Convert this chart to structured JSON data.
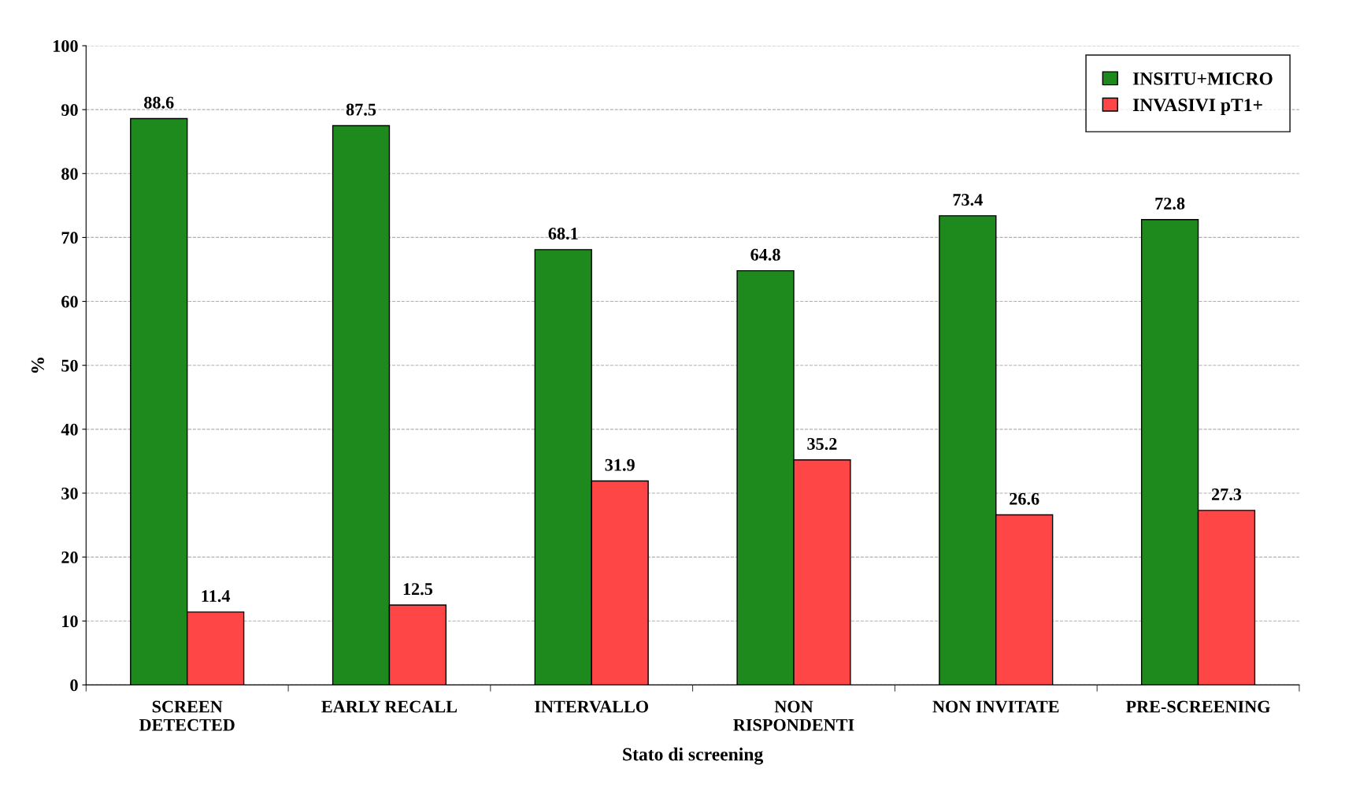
{
  "chart_data": {
    "type": "bar",
    "xlabel": "Stato di screening",
    "ylabel": "%",
    "categories": [
      "SCREEN\nDETECTED",
      "EARLY RECALL",
      "INTERVALLO",
      "NON\nRISPONDENTI",
      "NON INVITATE",
      "PRE-SCREENING"
    ],
    "series": [
      {
        "name": "INSITU+MICRO",
        "color": "#1e8a1e",
        "values": [
          88.6,
          87.5,
          68.1,
          64.8,
          73.4,
          72.8
        ]
      },
      {
        "name": "INVASIVI pT1+",
        "color": "#ff4646",
        "values": [
          11.4,
          12.5,
          31.9,
          35.2,
          26.6,
          27.3
        ]
      }
    ],
    "ylim": [
      0,
      100
    ],
    "yticks": [
      0,
      10,
      20,
      30,
      40,
      50,
      60,
      70,
      80,
      90,
      100
    ],
    "grid": "y",
    "legend": "top right",
    "data_labels": true
  }
}
